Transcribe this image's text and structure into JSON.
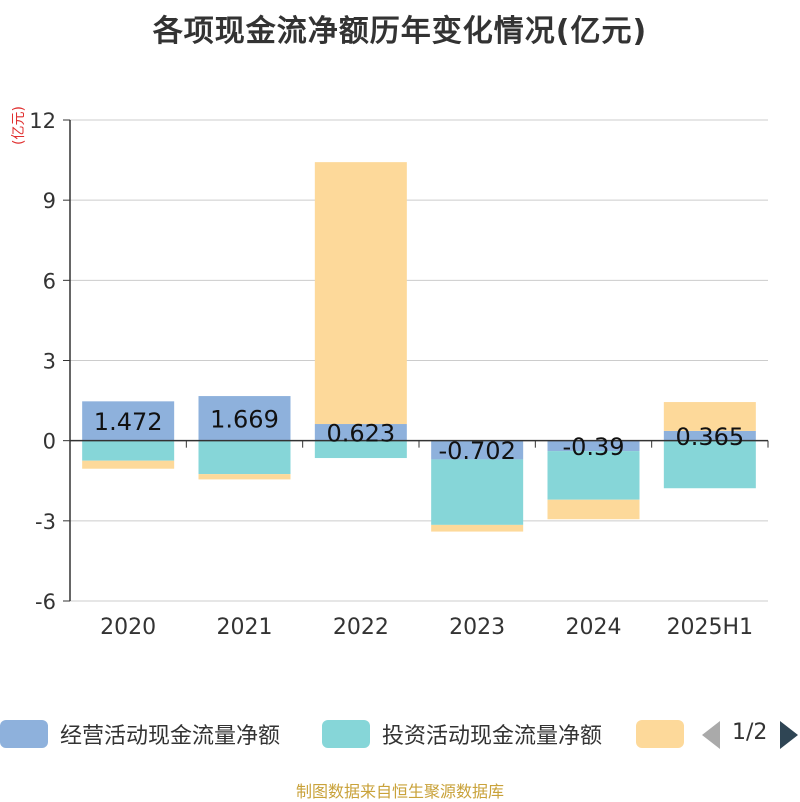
{
  "title": "各项现金流净额历年变化情况(亿元)",
  "unit": "(亿元)",
  "source": "制图数据来自恒生聚源数据库",
  "pager": "1/2",
  "colors": {
    "operating": "#8eb1dc",
    "investing": "#86d6d8",
    "financing": "#fdd99a"
  },
  "chart_data": {
    "type": "bar",
    "stacked": true,
    "categories": [
      "2020",
      "2021",
      "2022",
      "2023",
      "2024",
      "2025H1"
    ],
    "ylim": [
      -6,
      12
    ],
    "yticks": [
      "12",
      "9",
      "6",
      "3",
      "0",
      "-3",
      "-6"
    ],
    "ylabel": "(亿元)",
    "grid": true,
    "legend_position": "bottom",
    "series": [
      {
        "name": "经营活动现金流量净额",
        "values": [
          1.472,
          1.669,
          0.623,
          -0.702,
          -0.39,
          0.365
        ],
        "labels": [
          "1.472",
          "1.669",
          "0.623",
          "-0.702",
          "-0.39",
          "0.365"
        ]
      },
      {
        "name": "投资活动现金流量净额",
        "values": [
          -0.75,
          -1.25,
          -0.65,
          -2.45,
          -1.82,
          -1.78
        ]
      },
      {
        "values": [
          -0.3,
          -0.2,
          9.8,
          -0.25,
          -0.73,
          1.08
        ]
      }
    ]
  },
  "legend": [
    {
      "label": "经营活动现金流量净额",
      "color_key": "operating"
    },
    {
      "label": "投资活动现金流量净额",
      "color_key": "investing"
    },
    {
      "label": "",
      "color_key": "financing"
    }
  ]
}
